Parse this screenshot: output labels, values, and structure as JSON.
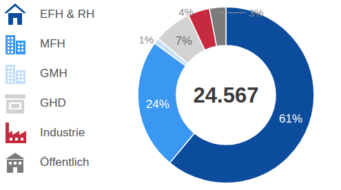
{
  "chart_data": {
    "type": "donut",
    "categories": [
      "EFH & RH",
      "MFH",
      "GMH",
      "GHD",
      "Industrie",
      "Öffentlich"
    ],
    "values": [
      61,
      24,
      1,
      7,
      4,
      3
    ],
    "value_labels": [
      "61%",
      "24%",
      "1%",
      "7%",
      "4%",
      "3%"
    ],
    "colors": [
      "#0b4c9c",
      "#3a97f2",
      "#c3def6",
      "#d2d2d2",
      "#c62a3e",
      "#7b7b7b"
    ],
    "data_labels": true,
    "legend": "left",
    "center_text": "24.567"
  }
}
